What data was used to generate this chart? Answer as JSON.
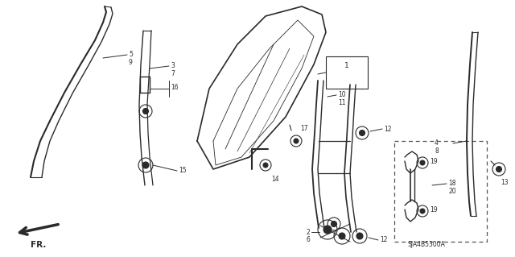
{
  "bg_color": "#ffffff",
  "line_color": "#2a2a2a",
  "diagram_code": "SJA4B5300A",
  "fr_label": "FR.",
  "figsize": [
    6.4,
    3.19
  ],
  "dpi": 100
}
